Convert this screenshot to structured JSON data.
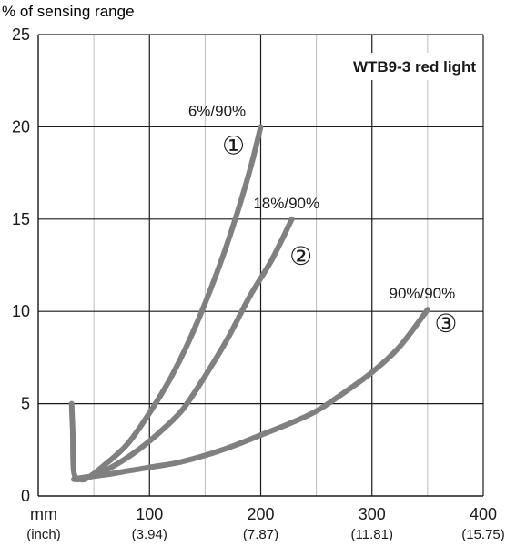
{
  "chart_data": {
    "type": "line",
    "title": "WTB9-3 red light",
    "ylabel": "% of sensing range",
    "xlabel": "",
    "x_unit_primary": "mm",
    "x_unit_secondary": "(inch)",
    "xlim": [
      0,
      400
    ],
    "ylim": [
      0,
      25
    ],
    "x_ticks": [
      {
        "value": 100,
        "label": "100",
        "sub": "(3.94)"
      },
      {
        "value": 200,
        "label": "200",
        "sub": "(7.87)"
      },
      {
        "value": 300,
        "label": "300",
        "sub": "(11.81)"
      },
      {
        "value": 400,
        "label": "400",
        "sub": "(15.75)"
      }
    ],
    "x_origin_label": "mm",
    "x_origin_sub": "(inch)",
    "y_ticks": [
      0,
      5,
      10,
      15,
      20,
      25
    ],
    "grid": true,
    "line_color": "#808080",
    "series": [
      {
        "name": "6%/90%",
        "marker": "①",
        "x": [
          30,
          31,
          32,
          38,
          45,
          60,
          80,
          100,
          120,
          140,
          160,
          175,
          190,
          200
        ],
        "y": [
          5.0,
          3.5,
          1.3,
          0.9,
          1.0,
          1.7,
          2.8,
          4.5,
          6.5,
          9.0,
          12.0,
          14.6,
          17.6,
          20.0
        ]
      },
      {
        "name": "18%/90%",
        "marker": "②",
        "x": [
          32,
          38,
          50,
          70,
          90,
          110,
          130,
          150,
          170,
          190,
          210,
          228
        ],
        "y": [
          0.9,
          0.9,
          1.1,
          1.7,
          2.5,
          3.5,
          4.7,
          6.5,
          8.5,
          10.8,
          12.8,
          15.0
        ]
      },
      {
        "name": "90%/90%",
        "marker": "③",
        "x": [
          32,
          40,
          60,
          80,
          100,
          125,
          150,
          175,
          200,
          225,
          250,
          275,
          300,
          325,
          350
        ],
        "y": [
          0.9,
          1.0,
          1.15,
          1.35,
          1.55,
          1.8,
          2.2,
          2.7,
          3.3,
          3.9,
          4.6,
          5.6,
          6.7,
          8.1,
          10.1
        ]
      }
    ]
  }
}
